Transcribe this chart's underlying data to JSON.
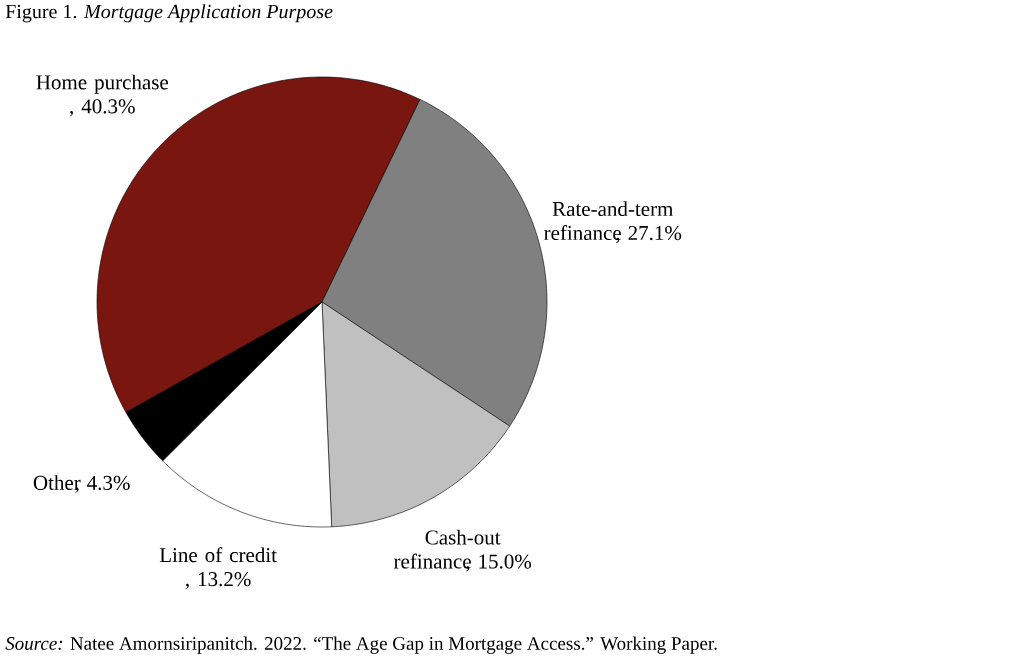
{
  "chart_data": {
    "type": "pie",
    "title": "Figure 1.  *Mortgage Application Purpose*",
    "categories": [
      "Home purchase",
      "Rate-and-term refinance",
      "Cash-out refinance",
      "Line of credit",
      "Other"
    ],
    "values": [
      40.3,
      27.1,
      15.0,
      13.2,
      4.3
    ],
    "value_labels": [
      ", 40.3%",
      ", 27.1%",
      ", 15.0%",
      ", 13.2%",
      ", 4.3%"
    ],
    "colors": [
      "#7a1610",
      "#808080",
      "#c0c0c0",
      "#ffffff",
      "#000000"
    ],
    "annotations": [
      "*Source:* Natee Amornsiripanitch. 2022. “The Age Gap in Mortgage Access.” Working Paper."
    ]
  }
}
